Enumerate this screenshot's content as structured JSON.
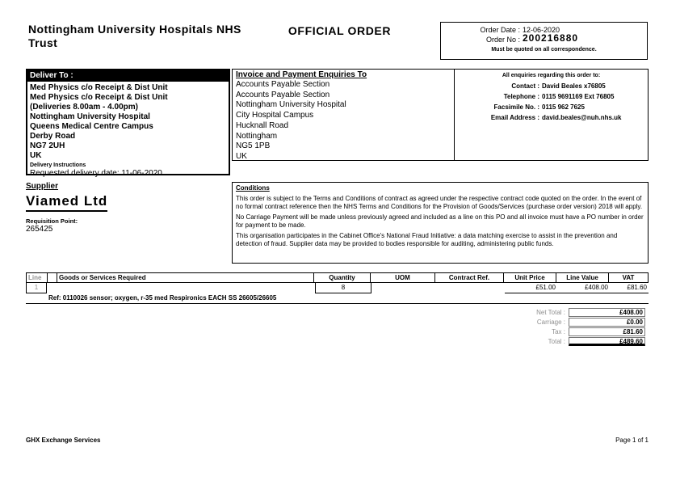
{
  "colors": {
    "ink": "#000000",
    "muted_gray": "#8f8f8f",
    "paper": "#ffffff"
  },
  "header": {
    "org_name": "Nottingham University Hospitals NHS Trust",
    "title": "OFFICIAL ORDER",
    "order_date_label": "Order Date :",
    "order_date": "12-06-2020",
    "order_no_label": "Order No :",
    "order_no": "200216880",
    "order_note": "Must be quoted on all correspondence."
  },
  "deliver_to": {
    "title": "Deliver To :",
    "lines": [
      "Med Physics c/o Receipt & Dist Unit",
      "Med Physics c/o Receipt & Dist Unit",
      "(Deliveries 8.00am - 4.00pm)",
      "Nottingham University Hospital",
      "Queens Medical Centre Campus",
      "Derby Road",
      "NG7 2UH",
      "UK"
    ],
    "delivery_instructions_label": "Delivery Instructions",
    "requested_delivery": "Requested delivery date: 11-06-2020"
  },
  "invoice_to": {
    "title": "Invoice and Payment Enquiries To",
    "lines": [
      "Accounts Payable Section",
      "Accounts Payable Section",
      "Nottingham University Hospital",
      "City Hospital Campus",
      "Hucknall Road",
      "Nottingham",
      "NG5 1PB",
      "UK"
    ]
  },
  "enquiries": {
    "heading": "All enquiries regarding this order to:",
    "rows": [
      {
        "label": "Contact :",
        "value": "David Beales x76805"
      },
      {
        "label": "Telephone :",
        "value": "0115 9691169 Ext 76805"
      },
      {
        "label": "Facsimile No. :",
        "value": "0115 962 7625"
      },
      {
        "label": "Email Address :",
        "value": "david.beales@nuh.nhs.uk"
      }
    ]
  },
  "supplier": {
    "label": "Supplier",
    "name": "Viamed Ltd",
    "requisition_label": "Requisition Point:",
    "requisition_value": "265425"
  },
  "conditions": {
    "title": "Conditions",
    "paragraphs": [
      "This order is subject to the Terms and Conditions of contract as agreed under the respective contract code quoted on the order. In the event of no formal contract reference then the NHS Terms and Conditions for the Provision of Goods/Services (purchase order version) 2018 will apply.",
      "No Carriage Payment will be made unless previously agreed and included as a line on this PO and all invoice must have a PO number in order for payment to be made.",
      "This organisation participates in the Cabinet Office's National Fraud Initiative: a data matching exercise to assist in the prevention and detection of fraud. Supplier data may be provided to bodies responsible for auditing, administering public funds."
    ]
  },
  "items_table": {
    "headers": [
      "Line",
      "Goods or Services Required",
      "Quantity",
      "UOM",
      "Contract Ref.",
      "Unit Price",
      "Line Value",
      "VAT"
    ],
    "rows": [
      {
        "line": "1",
        "description": "Ref: 0110026 sensor; oxygen, r-35 med Respironics EACH SS 26605/26605",
        "quantity": "8",
        "uom": "",
        "contract_ref": "",
        "unit_price": "£51.00",
        "line_value": "£408.00",
        "vat": "£81.60"
      }
    ]
  },
  "totals": {
    "rows": [
      {
        "label": "Net Total :",
        "value": "£408.00"
      },
      {
        "label": "Carriage :",
        "value": "£0.00"
      },
      {
        "label": "Tax :",
        "value": "£81.60"
      },
      {
        "label": "Total :",
        "value": "£489.60"
      }
    ]
  },
  "footer": {
    "left": "GHX Exchange Services",
    "right": "Page 1 of 1"
  }
}
